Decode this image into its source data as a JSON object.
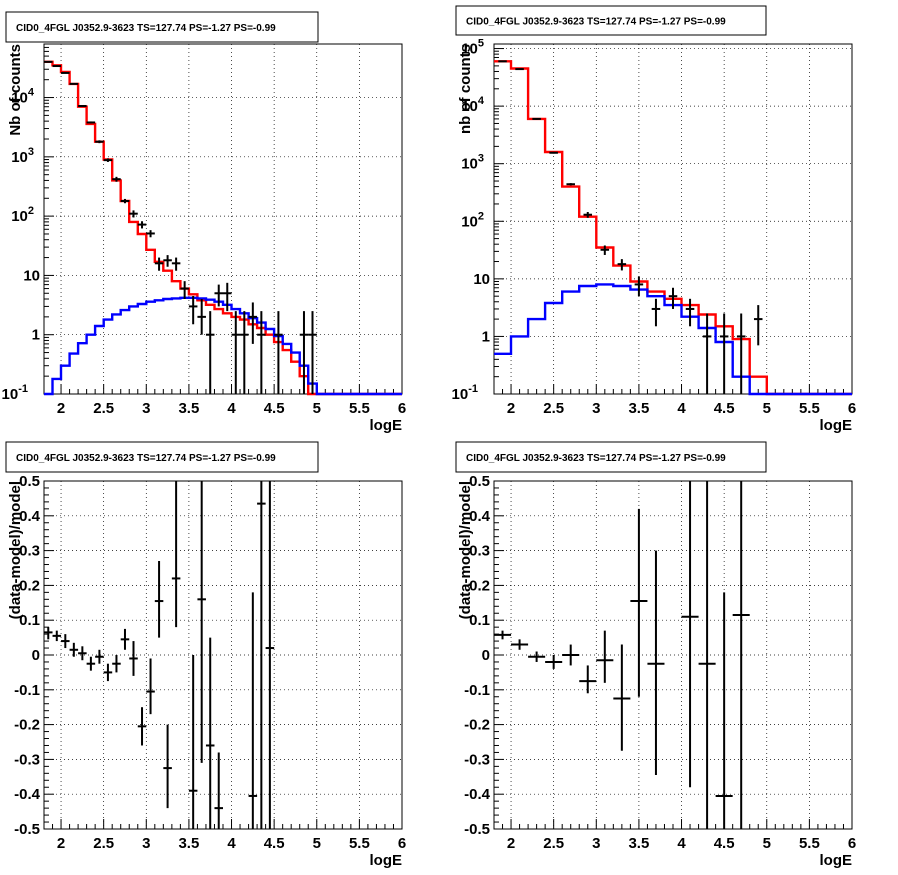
{
  "chart_data": [
    {
      "type": "line",
      "title": "CID0_4FGL J0352.9-3623 TS=127.74 PS=-1.27 PS=-0.99",
      "xlabel": "logE",
      "ylabel": "Nb of counts",
      "xlim": [
        1.8,
        6.0
      ],
      "ylim": [
        0.1,
        80000
      ],
      "yscale": "log",
      "grid": true,
      "x_ticks": [
        "2",
        "2.5",
        "3",
        "3.5",
        "4",
        "4.5",
        "5",
        "5.5",
        "6"
      ],
      "y_ticks": [
        "10^-1",
        "1",
        "10",
        "10^2",
        "10^3",
        "10^4"
      ],
      "bin_edges": [
        1.8,
        1.9,
        2.0,
        2.1,
        2.2,
        2.3,
        2.4,
        2.5,
        2.6,
        2.7,
        2.8,
        2.9,
        3.0,
        3.1,
        3.2,
        3.3,
        3.4,
        3.5,
        3.6,
        3.7,
        3.8,
        3.9,
        4.0,
        4.1,
        4.2,
        4.3,
        4.4,
        4.5,
        4.6,
        4.7,
        4.8,
        4.9,
        5.0,
        5.1,
        5.2,
        5.3,
        5.4,
        5.5,
        5.6,
        5.7,
        5.8,
        5.9,
        6.0
      ],
      "series": [
        {
          "color": "#ff0000",
          "style": "histogram",
          "values": [
            40000,
            35000,
            27000,
            17000,
            7000,
            3600,
            1800,
            900,
            400,
            180,
            80,
            50,
            27,
            17,
            12,
            8,
            6,
            4.8,
            3.8,
            3.2,
            2.7,
            2.3,
            2.0,
            1.8,
            1.5,
            1.3,
            1.0,
            0.75,
            0.55,
            0.35,
            0.2,
            0.1,
            0.1,
            0.1,
            0.1,
            0.1,
            0.1,
            0.1,
            0.1,
            0.1,
            0.1,
            0.1
          ]
        },
        {
          "color": "#0000ff",
          "style": "histogram",
          "values": [
            0.1,
            0.18,
            0.3,
            0.48,
            0.72,
            1.0,
            1.4,
            1.8,
            2.2,
            2.6,
            3.0,
            3.3,
            3.6,
            3.8,
            4.0,
            4.1,
            4.2,
            4.2,
            4.1,
            3.9,
            3.6,
            3.2,
            2.7,
            2.3,
            1.9,
            1.6,
            1.25,
            0.95,
            0.7,
            0.5,
            0.3,
            0.15,
            0.1,
            0.1,
            0.1,
            0.1,
            0.1,
            0.1,
            0.1,
            0.1,
            0.1,
            0.1
          ]
        },
        {
          "color": "#000000",
          "style": "errorbars",
          "points": [
            {
              "x": 1.85,
              "y": 40000,
              "ylo": 39000,
              "yhi": 41000
            },
            {
              "x": 1.95,
              "y": 34000,
              "ylo": 33000,
              "yhi": 35000
            },
            {
              "x": 2.05,
              "y": 26000,
              "ylo": 25500,
              "yhi": 26500
            },
            {
              "x": 2.15,
              "y": 17000,
              "ylo": 16600,
              "yhi": 17400
            },
            {
              "x": 2.25,
              "y": 7200,
              "ylo": 7000,
              "yhi": 7400
            },
            {
              "x": 2.35,
              "y": 3800,
              "ylo": 3650,
              "yhi": 3950
            },
            {
              "x": 2.45,
              "y": 1800,
              "ylo": 1700,
              "yhi": 1900
            },
            {
              "x": 2.55,
              "y": 880,
              "ylo": 820,
              "yhi": 940
            },
            {
              "x": 2.65,
              "y": 420,
              "ylo": 380,
              "yhi": 460
            },
            {
              "x": 2.75,
              "y": 180,
              "ylo": 165,
              "yhi": 195
            },
            {
              "x": 2.85,
              "y": 110,
              "ylo": 95,
              "yhi": 125
            },
            {
              "x": 2.95,
              "y": 72,
              "ylo": 62,
              "yhi": 82
            },
            {
              "x": 3.05,
              "y": 51,
              "ylo": 44,
              "yhi": 58
            },
            {
              "x": 3.15,
              "y": 16,
              "ylo": 12,
              "yhi": 20
            },
            {
              "x": 3.25,
              "y": 18,
              "ylo": 14,
              "yhi": 22
            },
            {
              "x": 3.35,
              "y": 16,
              "ylo": 12,
              "yhi": 20
            },
            {
              "x": 3.45,
              "y": 6,
              "ylo": 4,
              "yhi": 8
            },
            {
              "x": 3.55,
              "y": 3,
              "ylo": 1.5,
              "yhi": 4.5
            },
            {
              "x": 3.65,
              "y": 2,
              "ylo": 1,
              "yhi": 4
            },
            {
              "x": 3.75,
              "y": 1,
              "ylo": 0.1,
              "yhi": 2.5
            },
            {
              "x": 3.85,
              "y": 5,
              "ylo": 3,
              "yhi": 7
            },
            {
              "x": 3.95,
              "y": 5,
              "ylo": 2.5,
              "yhi": 7.5
            },
            {
              "x": 4.05,
              "y": 1,
              "ylo": 0.1,
              "yhi": 2.5
            },
            {
              "x": 4.15,
              "y": 1,
              "ylo": 0.1,
              "yhi": 2.5
            },
            {
              "x": 4.25,
              "y": 2,
              "ylo": 0.7,
              "yhi": 3.5
            },
            {
              "x": 4.35,
              "y": 1,
              "ylo": 0.1,
              "yhi": 2.5
            },
            {
              "x": 4.55,
              "y": 1,
              "ylo": 0.1,
              "yhi": 2.5
            },
            {
              "x": 4.85,
              "y": 1,
              "ylo": 0.1,
              "yhi": 2.5
            },
            {
              "x": 4.95,
              "y": 1,
              "ylo": 0.1,
              "yhi": 2.5
            }
          ]
        }
      ]
    },
    {
      "type": "line",
      "title": "CID0_4FGL J0352.9-3623 TS=127.74 PS=-1.27 PS=-0.99",
      "xlabel": "logE",
      "ylabel": "nb of counts",
      "xlim": [
        1.8,
        6.0
      ],
      "ylim": [
        0.1,
        120000
      ],
      "yscale": "log",
      "grid": true,
      "x_ticks": [
        "2",
        "2.5",
        "3",
        "3.5",
        "4",
        "4.5",
        "5",
        "5.5",
        "6"
      ],
      "y_ticks": [
        "10^-1",
        "1",
        "10",
        "10^2",
        "10^3",
        "10^4",
        "10^5"
      ],
      "bin_edges": [
        1.8,
        2.0,
        2.2,
        2.4,
        2.6,
        2.8,
        3.0,
        3.2,
        3.4,
        3.6,
        3.8,
        4.0,
        4.2,
        4.4,
        4.6,
        4.8,
        5.0,
        5.2,
        5.4,
        5.6,
        5.8,
        6.0
      ],
      "series": [
        {
          "color": "#ff0000",
          "style": "histogram",
          "values": [
            60000,
            45000,
            6000,
            1600,
            400,
            120,
            35,
            17,
            9,
            6,
            4.5,
            3.5,
            2.4,
            1.5,
            0.9,
            0.2,
            0.1,
            0.1,
            0.1,
            0.1,
            0.1
          ]
        },
        {
          "color": "#0000ff",
          "style": "histogram",
          "values": [
            0.5,
            1.0,
            2.0,
            3.8,
            6.0,
            7.5,
            8.0,
            7.5,
            6.5,
            5.0,
            3.5,
            2.2,
            1.4,
            0.8,
            0.2,
            0.1,
            0.1,
            0.1,
            0.1,
            0.1,
            0.1
          ]
        },
        {
          "color": "#000000",
          "style": "errorbars",
          "points": [
            {
              "x": 1.9,
              "y": 60000,
              "ylo": 59000,
              "yhi": 61000
            },
            {
              "x": 2.1,
              "y": 44000,
              "ylo": 43000,
              "yhi": 45000
            },
            {
              "x": 2.3,
              "y": 6000,
              "ylo": 5800,
              "yhi": 6200
            },
            {
              "x": 2.5,
              "y": 1550,
              "ylo": 1500,
              "yhi": 1600
            },
            {
              "x": 2.7,
              "y": 440,
              "ylo": 420,
              "yhi": 460
            },
            {
              "x": 2.9,
              "y": 130,
              "ylo": 115,
              "yhi": 145
            },
            {
              "x": 3.1,
              "y": 32,
              "ylo": 26,
              "yhi": 38
            },
            {
              "x": 3.3,
              "y": 18,
              "ylo": 14,
              "yhi": 22
            },
            {
              "x": 3.5,
              "y": 8,
              "ylo": 5,
              "yhi": 11
            },
            {
              "x": 3.7,
              "y": 3,
              "ylo": 1.5,
              "yhi": 4.5
            },
            {
              "x": 3.9,
              "y": 5,
              "ylo": 3,
              "yhi": 7
            },
            {
              "x": 4.1,
              "y": 3,
              "ylo": 1.5,
              "yhi": 4.5
            },
            {
              "x": 4.3,
              "y": 1,
              "ylo": 0.1,
              "yhi": 2.5
            },
            {
              "x": 4.5,
              "y": 1,
              "ylo": 0.1,
              "yhi": 2.5
            },
            {
              "x": 4.7,
              "y": 1,
              "ylo": 0.1,
              "yhi": 2.5
            },
            {
              "x": 4.9,
              "y": 2,
              "ylo": 0.7,
              "yhi": 3.5
            }
          ]
        }
      ]
    },
    {
      "type": "scatter",
      "title": "CID0_4FGL J0352.9-3623 TS=127.74 PS=-1.27 PS=-0.99",
      "xlabel": "logE",
      "ylabel": "(data-model)/model",
      "xlim": [
        1.8,
        6.0
      ],
      "ylim": [
        -0.5,
        0.5
      ],
      "grid": true,
      "x_ticks": [
        "2",
        "2.5",
        "3",
        "3.5",
        "4",
        "4.5",
        "5",
        "5.5",
        "6"
      ],
      "y_ticks": [
        "-0.5",
        "-0.4",
        "-0.3",
        "-0.2",
        "-0.1",
        "0",
        "0.1",
        "0.2",
        "0.3",
        "0.4",
        "0.5"
      ],
      "series": [
        {
          "color": "#000000",
          "style": "errorbars",
          "xhalfwidth": 0.05,
          "points": [
            {
              "x": 1.85,
              "y": 0.065,
              "ylo": 0.045,
              "yhi": 0.08
            },
            {
              "x": 1.95,
              "y": 0.055,
              "ylo": 0.04,
              "yhi": 0.07
            },
            {
              "x": 2.05,
              "y": 0.04,
              "ylo": 0.02,
              "yhi": 0.06
            },
            {
              "x": 2.15,
              "y": 0.015,
              "ylo": -0.005,
              "yhi": 0.035
            },
            {
              "x": 2.25,
              "y": 0.005,
              "ylo": -0.015,
              "yhi": 0.025
            },
            {
              "x": 2.35,
              "y": -0.025,
              "ylo": -0.045,
              "yhi": -0.005
            },
            {
              "x": 2.45,
              "y": -0.005,
              "ylo": -0.025,
              "yhi": 0.015
            },
            {
              "x": 2.55,
              "y": -0.05,
              "ylo": -0.075,
              "yhi": -0.025
            },
            {
              "x": 2.65,
              "y": -0.025,
              "ylo": -0.05,
              "yhi": 0.0
            },
            {
              "x": 2.75,
              "y": 0.045,
              "ylo": 0.015,
              "yhi": 0.075
            },
            {
              "x": 2.85,
              "y": -0.01,
              "ylo": -0.06,
              "yhi": 0.04
            },
            {
              "x": 2.95,
              "y": -0.205,
              "ylo": -0.26,
              "yhi": -0.15
            },
            {
              "x": 3.05,
              "y": -0.105,
              "ylo": -0.17,
              "yhi": -0.01
            },
            {
              "x": 3.15,
              "y": 0.155,
              "ylo": 0.05,
              "yhi": 0.27
            },
            {
              "x": 3.25,
              "y": -0.325,
              "ylo": -0.44,
              "yhi": -0.2
            },
            {
              "x": 3.35,
              "y": 0.22,
              "ylo": 0.08,
              "yhi": 0.5
            },
            {
              "x": 3.55,
              "y": -0.39,
              "ylo": -0.5,
              "yhi": 0.0
            },
            {
              "x": 3.65,
              "y": 0.16,
              "ylo": -0.31,
              "yhi": 0.5
            },
            {
              "x": 3.75,
              "y": -0.26,
              "ylo": -0.5,
              "yhi": 0.05
            },
            {
              "x": 3.85,
              "y": -0.44,
              "ylo": -0.5,
              "yhi": -0.28
            },
            {
              "x": 4.25,
              "y": -0.405,
              "ylo": -0.5,
              "yhi": 0.18
            },
            {
              "x": 4.35,
              "y": 0.435,
              "ylo": -0.5,
              "yhi": 0.5
            },
            {
              "x": 4.45,
              "y": 0.02,
              "ylo": -0.5,
              "yhi": 0.5
            }
          ]
        }
      ]
    },
    {
      "type": "scatter",
      "title": "CID0_4FGL J0352.9-3623 TS=127.74 PS=-1.27 PS=-0.99",
      "xlabel": "logE",
      "ylabel": "(data-model)/model",
      "xlim": [
        1.8,
        6.0
      ],
      "ylim": [
        -0.5,
        0.5
      ],
      "grid": true,
      "x_ticks": [
        "2",
        "2.5",
        "3",
        "3.5",
        "4",
        "4.5",
        "5",
        "5.5",
        "6"
      ],
      "y_ticks": [
        "-0.5",
        "-0.4",
        "-0.3",
        "-0.2",
        "-0.1",
        "0",
        "0.1",
        "0.2",
        "0.3",
        "0.4",
        "0.5"
      ],
      "series": [
        {
          "color": "#000000",
          "style": "errorbars",
          "xhalfwidth": 0.1,
          "points": [
            {
              "x": 1.9,
              "y": 0.058,
              "ylo": 0.045,
              "yhi": 0.07
            },
            {
              "x": 2.1,
              "y": 0.03,
              "ylo": 0.015,
              "yhi": 0.045
            },
            {
              "x": 2.3,
              "y": -0.005,
              "ylo": -0.02,
              "yhi": 0.01
            },
            {
              "x": 2.5,
              "y": -0.02,
              "ylo": -0.04,
              "yhi": 0.0
            },
            {
              "x": 2.7,
              "y": 0.0,
              "ylo": -0.03,
              "yhi": 0.03
            },
            {
              "x": 2.9,
              "y": -0.075,
              "ylo": -0.11,
              "yhi": -0.03
            },
            {
              "x": 3.1,
              "y": -0.015,
              "ylo": -0.08,
              "yhi": 0.07
            },
            {
              "x": 3.3,
              "y": -0.125,
              "ylo": -0.275,
              "yhi": 0.03
            },
            {
              "x": 3.5,
              "y": 0.155,
              "ylo": -0.12,
              "yhi": 0.42
            },
            {
              "x": 3.7,
              "y": -0.025,
              "ylo": -0.345,
              "yhi": 0.3
            },
            {
              "x": 4.1,
              "y": 0.11,
              "ylo": -0.38,
              "yhi": 0.5
            },
            {
              "x": 4.3,
              "y": -0.025,
              "ylo": -0.5,
              "yhi": 0.5
            },
            {
              "x": 4.5,
              "y": -0.405,
              "ylo": -0.5,
              "yhi": 0.18
            },
            {
              "x": 4.7,
              "y": 0.115,
              "ylo": -0.5,
              "yhi": 0.5
            }
          ]
        }
      ]
    }
  ]
}
